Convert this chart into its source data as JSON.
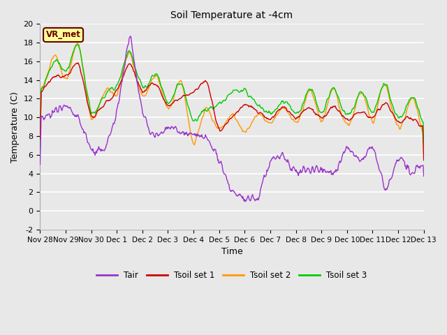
{
  "title": "Soil Temperature at -4cm",
  "xlabel": "Time",
  "ylabel": "Temperature (C)",
  "ylim": [
    -2,
    20
  ],
  "background_color": "#e8e8e8",
  "plot_bg_color": "#e8e8e8",
  "grid_color": "white",
  "legend_labels": [
    "Tair",
    "Tsoil set 1",
    "Tsoil set 2",
    "Tsoil set 3"
  ],
  "legend_colors": [
    "#9933cc",
    "#cc0000",
    "#ff9900",
    "#00cc00"
  ],
  "line_width": 1.0,
  "annotation_text": "VR_met",
  "annotation_box_color": "#ffff99",
  "annotation_text_color": "#660000",
  "xtick_labels": [
    "Nov 28",
    "Nov 29",
    "Nov 30",
    "Dec 1",
    "Dec 2",
    "Dec 3",
    "Dec 4",
    "Dec 5",
    "Dec 6",
    "Dec 7",
    "Dec 8",
    "Dec 9",
    "Dec 10",
    "Dec 11",
    "Dec 12",
    "Dec 13"
  ],
  "ytick_values": [
    -2,
    0,
    2,
    4,
    6,
    8,
    10,
    12,
    14,
    16,
    18,
    20
  ],
  "figsize": [
    6.4,
    4.8
  ],
  "dpi": 100
}
